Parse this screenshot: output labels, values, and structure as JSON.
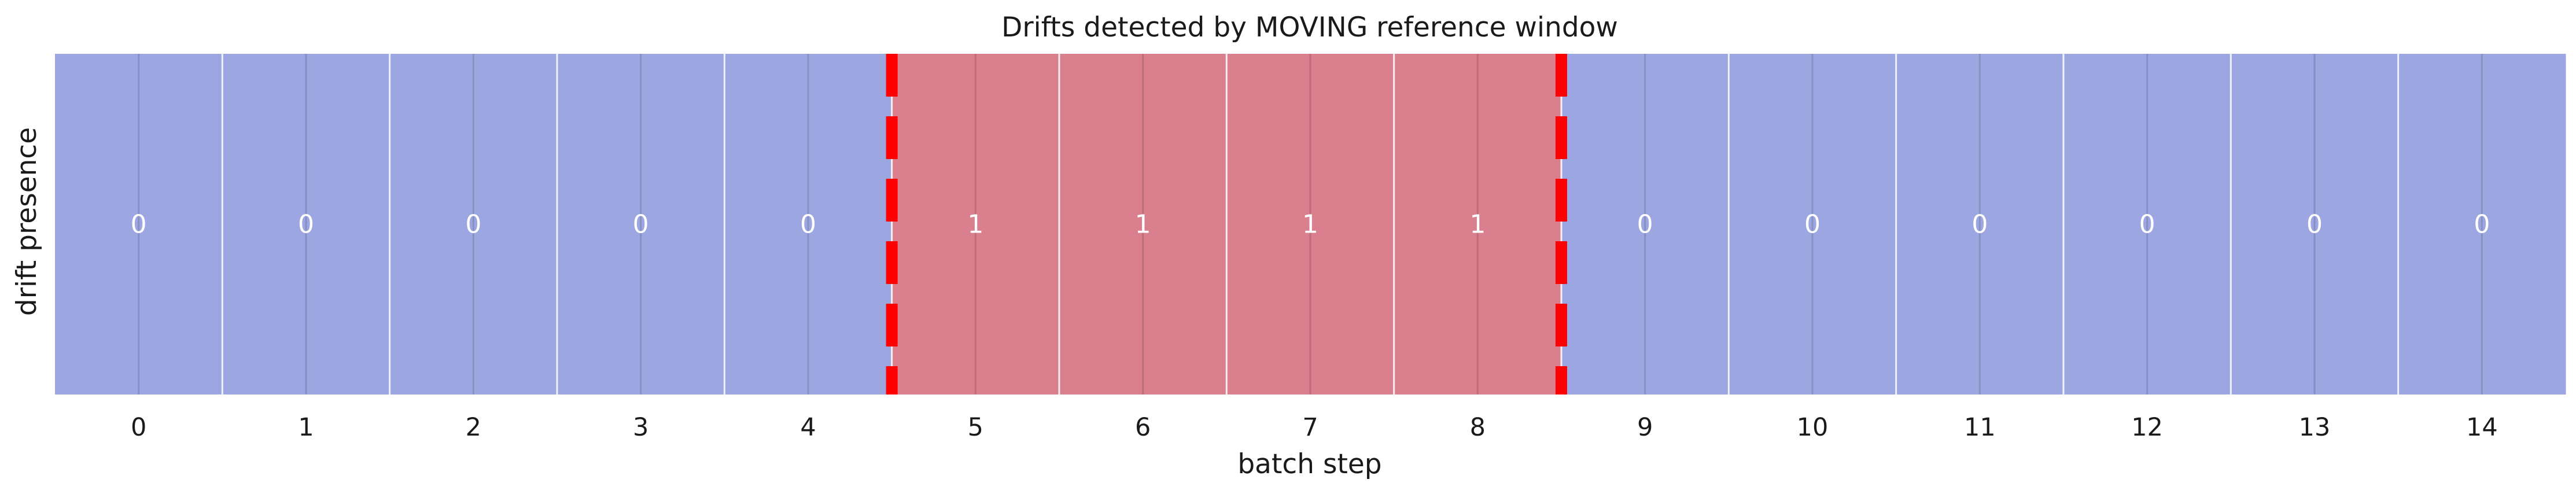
{
  "chart_data": {
    "type": "heatmap",
    "title": "Drifts detected by MOVING reference window",
    "xlabel": "batch step",
    "ylabel": "drift presence",
    "categories": [
      "0",
      "1",
      "2",
      "3",
      "4",
      "5",
      "6",
      "7",
      "8",
      "9",
      "10",
      "11",
      "12",
      "13",
      "14"
    ],
    "values": [
      0,
      0,
      0,
      0,
      0,
      1,
      1,
      1,
      1,
      0,
      0,
      0,
      0,
      0,
      0
    ],
    "colors": {
      "no_drift": "#9ca6e0",
      "drift": "#d97f8e",
      "boundary_line": "#ff0000",
      "grid_line": "#ffffff"
    },
    "drift_boundaries": [
      4.5,
      8.5
    ],
    "grid": true
  }
}
